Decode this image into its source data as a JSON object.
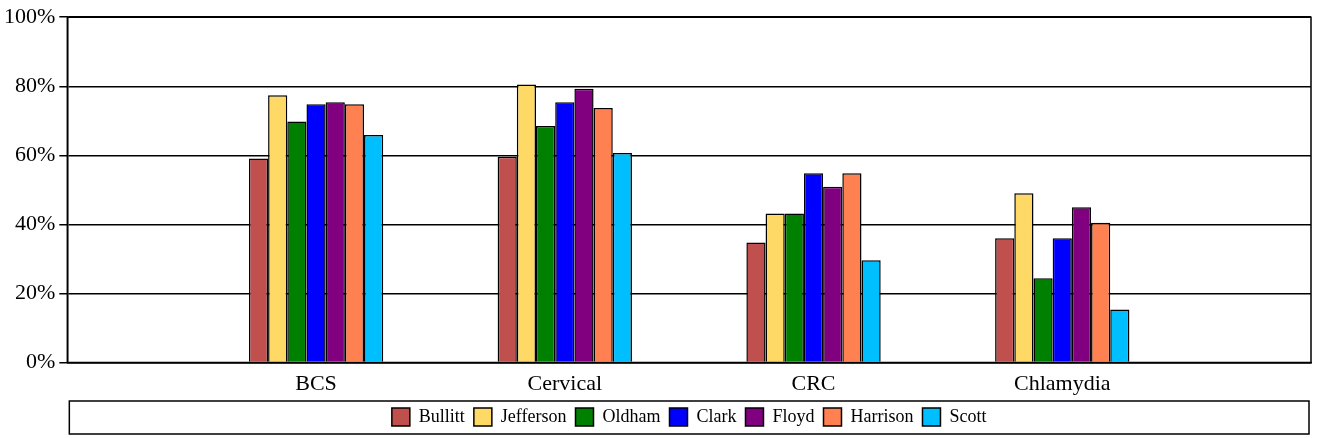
{
  "chart_data": {
    "type": "bar",
    "categories": [
      null,
      "BCS",
      "Cervical",
      "CRC",
      "Chlamydia",
      null
    ],
    "series": [
      {
        "name": "Bullitt",
        "color": "#c0504d",
        "values": [
          null,
          59.1,
          59.6,
          34.8,
          36,
          null
        ]
      },
      {
        "name": "Jefferson",
        "color": "#ffd966",
        "values": [
          null,
          77.4,
          80.5,
          43.2,
          49,
          null
        ]
      },
      {
        "name": "Oldham",
        "color": "#008000",
        "values": [
          null,
          69.8,
          68.5,
          43.2,
          24.4,
          null
        ]
      },
      {
        "name": "Clark",
        "color": "#0000ff",
        "values": [
          null,
          74.8,
          75.4,
          54.8,
          36,
          null
        ]
      },
      {
        "name": "Floyd",
        "color": "#800080",
        "values": [
          null,
          75.4,
          79.3,
          50.9,
          45,
          null
        ]
      },
      {
        "name": "Harrison",
        "color": "#ff8050",
        "values": [
          null,
          74.8,
          73.7,
          54.8,
          40.5,
          null
        ]
      },
      {
        "name": "Scott",
        "color": "#00bfff",
        "values": [
          null,
          65.9,
          60.7,
          29.6,
          15.4,
          null
        ]
      }
    ],
    "ylim": [
      0,
      100
    ],
    "yticks": [
      {
        "value": 0,
        "label": "0%"
      },
      {
        "value": 20,
        "label": "20%"
      },
      {
        "value": 40,
        "label": "40%"
      },
      {
        "value": 60,
        "label": "60%"
      },
      {
        "value": 80,
        "label": "80%"
      },
      {
        "value": 100,
        "label": "100%"
      }
    ],
    "grid": "y",
    "legend": "bottom"
  }
}
